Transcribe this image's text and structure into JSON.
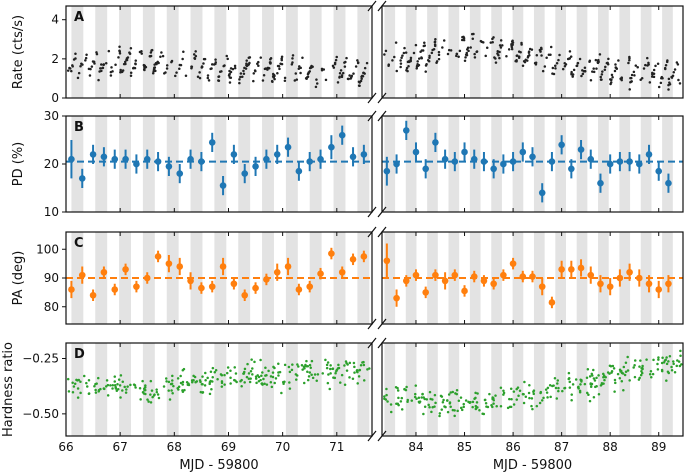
{
  "chart_data": {
    "type": "scatter",
    "description_layout": "four stacked panels, broken x-axis",
    "x_segments": [
      {
        "name": "left",
        "xlim": [
          66.0,
          71.65
        ],
        "ticks": [
          66,
          67,
          68,
          69,
          70,
          71
        ],
        "tick_labels": [
          "66",
          "67",
          "68",
          "69",
          "70",
          "71"
        ],
        "xlabel": "MJD - 59800"
      },
      {
        "name": "right",
        "xlim": [
          83.3,
          89.5
        ],
        "ticks": [
          84,
          85,
          86,
          87,
          88,
          89
        ],
        "tick_labels": [
          "84",
          "85",
          "86",
          "87",
          "88",
          "89"
        ],
        "xlabel": "MJD - 59800"
      }
    ],
    "shading": {
      "period_days": 0.22,
      "start_left": 66.1,
      "start_right": 83.35,
      "color": "#e3e3e3"
    },
    "panels": [
      {
        "letter": "A",
        "ylabel": "Rate (cts/s)",
        "ylim": [
          0,
          4.7
        ],
        "yticks": [
          0,
          2,
          4
        ],
        "ytick_labels": [
          "0",
          "2",
          "4"
        ],
        "color": "#222222",
        "style": "dense-dots",
        "rate_levels": [
          {
            "x": 66.0,
            "y": 1.6
          },
          {
            "x": 66.5,
            "y": 1.7
          },
          {
            "x": 67.0,
            "y": 1.8
          },
          {
            "x": 67.6,
            "y": 1.9
          },
          {
            "x": 68.2,
            "y": 1.6
          },
          {
            "x": 69.0,
            "y": 1.5
          },
          {
            "x": 70.0,
            "y": 1.4
          },
          {
            "x": 71.5,
            "y": 1.3
          },
          {
            "x": 83.4,
            "y": 1.9
          },
          {
            "x": 84.5,
            "y": 2.3
          },
          {
            "x": 85.3,
            "y": 2.7
          },
          {
            "x": 86.0,
            "y": 2.2
          },
          {
            "x": 87.0,
            "y": 1.8
          },
          {
            "x": 88.0,
            "y": 1.4
          },
          {
            "x": 89.4,
            "y": 1.2
          }
        ],
        "modulation_amplitude": 0.75
      },
      {
        "letter": "B",
        "ylabel": "PD (%)",
        "ylim": [
          10,
          30
        ],
        "yticks": [
          10,
          20,
          30
        ],
        "ytick_labels": [
          "10",
          "20",
          "30"
        ],
        "color": "#1f77b4",
        "style": "errorbar",
        "mean_line": 20.5,
        "left": {
          "x": [
            66.1,
            66.3,
            66.5,
            66.7,
            66.9,
            67.1,
            67.3,
            67.5,
            67.7,
            67.9,
            68.1,
            68.3,
            68.5,
            68.7,
            68.9,
            69.1,
            69.3,
            69.5,
            69.7,
            69.9,
            70.1,
            70.3,
            70.5,
            70.7,
            70.9,
            71.1,
            71.3,
            71.5
          ],
          "y": [
            21,
            17,
            22,
            21.5,
            21,
            21,
            20,
            21,
            20.5,
            19.5,
            18,
            21,
            20.5,
            24.5,
            15.5,
            22,
            18,
            19.5,
            21,
            22,
            23.5,
            18.5,
            20.5,
            21,
            23.5,
            26,
            21.5,
            22
          ],
          "err": [
            4,
            2,
            2,
            2,
            2,
            2,
            2,
            2,
            2,
            2,
            2,
            2,
            2,
            2,
            2,
            2,
            2,
            2,
            2,
            2,
            2,
            2,
            2,
            2,
            2.5,
            2,
            2,
            2
          ]
        },
        "right": {
          "x": [
            83.4,
            83.6,
            83.8,
            84.0,
            84.2,
            84.4,
            84.6,
            84.8,
            85.0,
            85.2,
            85.4,
            85.6,
            85.8,
            86.0,
            86.2,
            86.4,
            86.6,
            86.8,
            87.0,
            87.2,
            87.4,
            87.6,
            87.8,
            88.0,
            88.2,
            88.4,
            88.6,
            88.8,
            89.0,
            89.2
          ],
          "y": [
            18.5,
            20,
            27,
            22.5,
            19,
            24.5,
            21,
            20.5,
            22.5,
            21,
            20.5,
            19,
            20,
            20.5,
            22.5,
            21.5,
            14,
            20.5,
            24,
            19,
            23,
            21,
            16,
            20,
            20.5,
            20.5,
            20,
            22,
            18.5,
            16
          ],
          "err": [
            3,
            2,
            2,
            2,
            2,
            2,
            2,
            2,
            2,
            2,
            2,
            2,
            2,
            2,
            2,
            2,
            2,
            2,
            2,
            2,
            2,
            2,
            2,
            2,
            2,
            2,
            2,
            2,
            2,
            2
          ]
        }
      },
      {
        "letter": "C",
        "ylabel": "PA (deg)",
        "ylim": [
          74,
          106
        ],
        "yticks": [
          80,
          90,
          100
        ],
        "ytick_labels": [
          "80",
          "90",
          "100"
        ],
        "color": "#ff7f0e",
        "style": "errorbar",
        "mean_line": 90,
        "left": {
          "x": [
            66.1,
            66.3,
            66.5,
            66.7,
            66.9,
            67.1,
            67.3,
            67.5,
            67.7,
            67.9,
            68.1,
            68.3,
            68.5,
            68.7,
            68.9,
            69.1,
            69.3,
            69.5,
            69.7,
            69.9,
            70.1,
            70.3,
            70.5,
            70.7,
            70.9,
            71.1,
            71.3,
            71.5
          ],
          "y": [
            86,
            91,
            84,
            92,
            86,
            93,
            87,
            90,
            97.5,
            95,
            94,
            89,
            86.5,
            87,
            94,
            88,
            84,
            86.5,
            89.5,
            92,
            94,
            86,
            87,
            91.5,
            98.5,
            92,
            96.5,
            97.5
          ],
          "err": [
            3,
            3,
            2,
            2,
            2,
            2,
            2,
            2,
            2,
            3,
            3,
            3,
            2,
            2,
            3,
            2,
            2,
            2,
            2,
            3,
            3,
            2,
            2,
            2,
            2,
            2,
            2,
            2
          ]
        },
        "right": {
          "x": [
            83.4,
            83.6,
            83.8,
            84.0,
            84.2,
            84.4,
            84.6,
            84.8,
            85.0,
            85.2,
            85.4,
            85.6,
            85.8,
            86.0,
            86.2,
            86.4,
            86.6,
            86.8,
            87.0,
            87.2,
            87.4,
            87.6,
            87.8,
            88.0,
            88.2,
            88.4,
            88.6,
            88.8,
            89.0,
            89.2
          ],
          "y": [
            96,
            83,
            89,
            91,
            85,
            91,
            89,
            91,
            85.5,
            90.5,
            89,
            88,
            91,
            95,
            90.5,
            90.5,
            87,
            81.5,
            93,
            93,
            93.5,
            91,
            88,
            87,
            90,
            92,
            90,
            88,
            86,
            88
          ],
          "err": [
            6,
            3,
            2,
            2,
            2,
            2,
            3,
            2,
            2,
            2,
            2,
            2,
            2,
            2,
            2,
            2,
            3,
            2,
            3,
            3,
            3,
            3,
            3,
            3,
            3,
            3,
            3,
            3,
            3,
            3
          ]
        }
      },
      {
        "letter": "D",
        "ylabel": "Hardness ratio",
        "ylim": [
          -0.6,
          -0.18
        ],
        "yticks": [
          -0.5,
          -0.25
        ],
        "ytick_labels": [
          "−0.50",
          "−0.25"
        ],
        "color": "#2ca02c",
        "style": "dense-dots",
        "hr_levels": [
          {
            "x": 66.0,
            "y": -0.37
          },
          {
            "x": 67.0,
            "y": -0.38
          },
          {
            "x": 67.6,
            "y": -0.41
          },
          {
            "x": 68.0,
            "y": -0.37
          },
          {
            "x": 69.0,
            "y": -0.34
          },
          {
            "x": 70.0,
            "y": -0.32
          },
          {
            "x": 71.6,
            "y": -0.3
          },
          {
            "x": 83.4,
            "y": -0.42
          },
          {
            "x": 84.5,
            "y": -0.45
          },
          {
            "x": 85.5,
            "y": -0.46
          },
          {
            "x": 86.5,
            "y": -0.41
          },
          {
            "x": 87.5,
            "y": -0.37
          },
          {
            "x": 88.2,
            "y": -0.32
          },
          {
            "x": 88.6,
            "y": -0.29
          },
          {
            "x": 89.4,
            "y": -0.28
          }
        ],
        "scatter_spread": 0.03
      }
    ]
  }
}
